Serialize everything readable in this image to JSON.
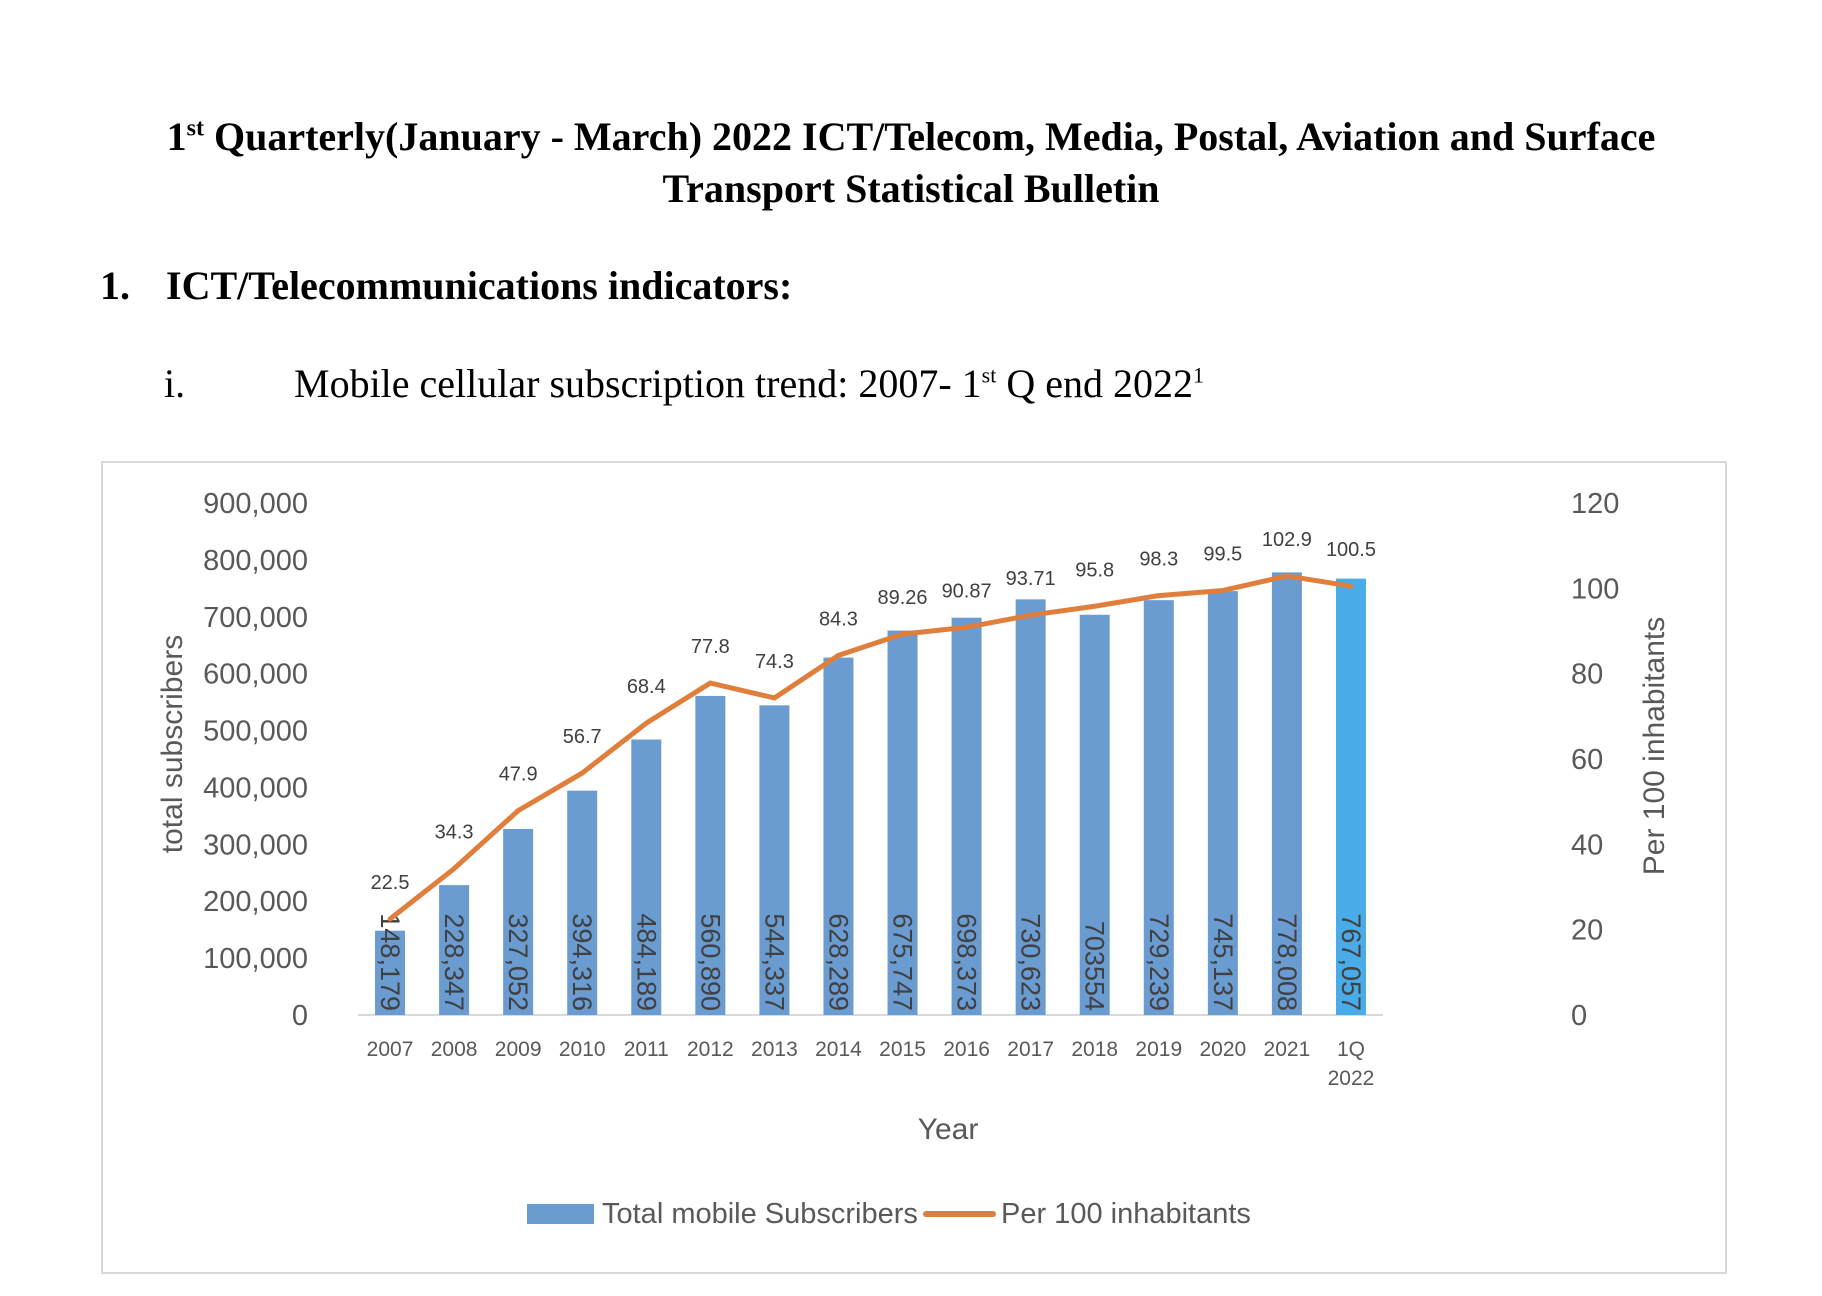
{
  "document": {
    "title_line1_pre": "1",
    "title_line1_sup": "st",
    "title_line1_post": " Quarterly(January - March) 2022 ICT/Telecom, Media, Postal, Aviation and Surface",
    "title_line2": "Transport Statistical Bulletin",
    "section_number": "1.",
    "section_title": "ICT/Telecommunications indicators:",
    "sub_number": "i.",
    "sub_title_pre": "Mobile cellular subscription trend: 2007-  1",
    "sub_title_sup1": "st",
    "sub_title_post": " Q end 2022",
    "sub_title_sup2": "1"
  },
  "chart_data": {
    "type": "bar",
    "title": "",
    "xlabel": "Year",
    "ylabel": "total subscribers",
    "y2label": "Per 100 inhabitants",
    "categories": [
      "2007",
      "2008",
      "2009",
      "2010",
      "2011",
      "2012",
      "2013",
      "2014",
      "2015",
      "2016",
      "2017",
      "2018",
      "2019",
      "2020",
      "2021",
      "1Q 2022"
    ],
    "category_lines": [
      [
        "2007"
      ],
      [
        "2008"
      ],
      [
        "2009"
      ],
      [
        "2010"
      ],
      [
        "2011"
      ],
      [
        "2012"
      ],
      [
        "2013"
      ],
      [
        "2014"
      ],
      [
        "2015"
      ],
      [
        "2016"
      ],
      [
        "2017"
      ],
      [
        "2018"
      ],
      [
        "2019"
      ],
      [
        "2020"
      ],
      [
        "2021"
      ],
      [
        "1Q",
        "2022"
      ]
    ],
    "ylim": [
      0,
      900000
    ],
    "yticks": [
      0,
      100000,
      200000,
      300000,
      400000,
      500000,
      600000,
      700000,
      800000,
      900000
    ],
    "ytick_labels": [
      "0",
      "100,000",
      "200,000",
      "300,000",
      "400,000",
      "500,000",
      "600,000",
      "700,000",
      "800,000",
      "900,000"
    ],
    "y2lim": [
      0,
      120
    ],
    "y2ticks": [
      0,
      20,
      40,
      60,
      80,
      100,
      120
    ],
    "y2tick_labels": [
      "0",
      "20",
      "40",
      "60",
      "80",
      "100",
      "120"
    ],
    "grid": false,
    "legend_position": "bottom",
    "series": [
      {
        "name": "Total mobile Subscribers",
        "type": "bar",
        "axis": "left",
        "color": "#6a9bd1",
        "highlight_color": "#49ace8",
        "highlight_index": 15,
        "values": [
          148179,
          228347,
          327052,
          394316,
          484189,
          560890,
          544337,
          628289,
          675747,
          698373,
          730623,
          703554,
          729239,
          745137,
          778008,
          767057
        ],
        "labels": [
          "148,179",
          "228,347",
          "327,052",
          "394,316",
          "484,189",
          "560,890",
          "544,337",
          "628,289",
          "675,747",
          "698,373",
          "730,623",
          "703554",
          "729,239",
          "745,137",
          "778,008",
          "767,057"
        ]
      },
      {
        "name": "Per 100 inhabitants",
        "type": "line",
        "axis": "right",
        "color": "#e07e3c",
        "values": [
          22.5,
          34.3,
          47.9,
          56.7,
          68.4,
          77.8,
          74.3,
          84.3,
          89.26,
          90.87,
          93.71,
          95.8,
          98.3,
          99.5,
          102.9,
          100.5
        ],
        "labels": [
          "22.5",
          "34.3",
          "47.9",
          "56.7",
          "68.4",
          "77.8",
          "74.3",
          "84.3",
          "89.26",
          "90.87",
          "93.71",
          "95.8",
          "98.3",
          "99.5",
          "102.9",
          "100.5"
        ]
      }
    ]
  }
}
